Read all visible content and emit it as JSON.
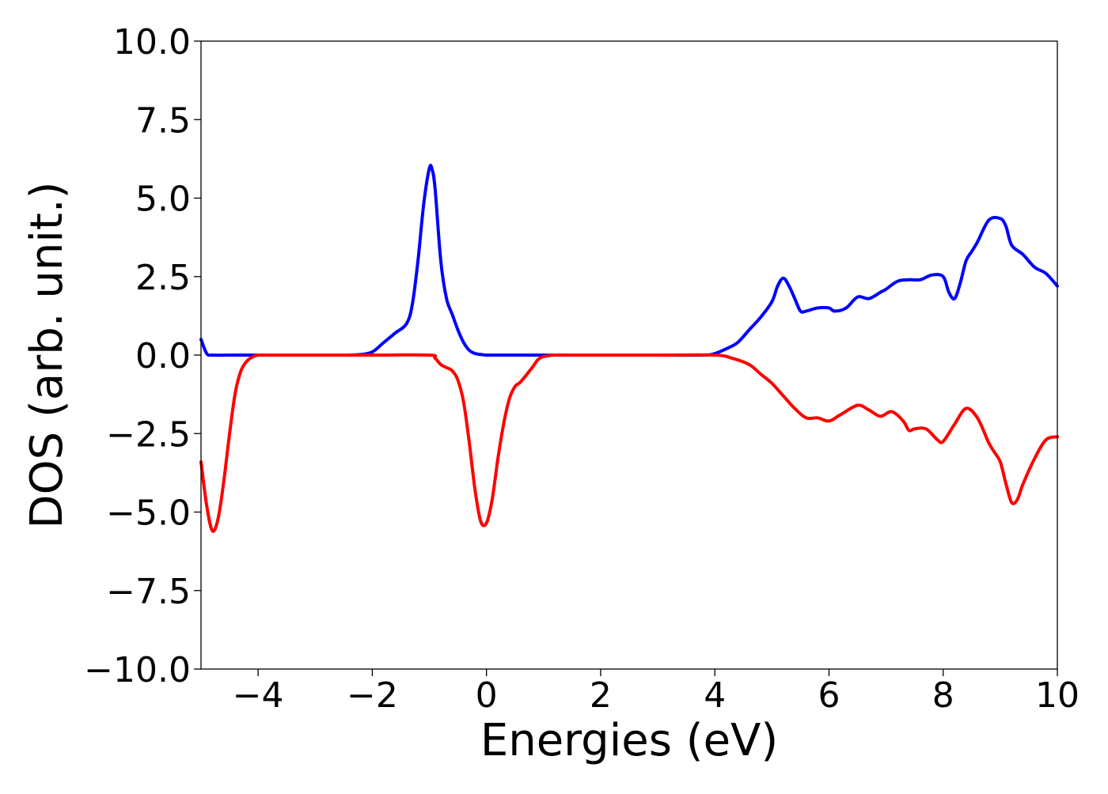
{
  "chart_data": {
    "type": "line",
    "title": "",
    "xlabel": "Energies (eV)",
    "ylabel": "DOS (arb. unit.)",
    "xlim": [
      -5,
      10
    ],
    "ylim": [
      -10,
      10
    ],
    "x_ticks": [
      -4,
      -2,
      0,
      2,
      4,
      6,
      8,
      10
    ],
    "x_tick_labels": [
      "−4",
      "−2",
      "0",
      "2",
      "4",
      "6",
      "8",
      "10"
    ],
    "y_ticks": [
      10,
      7.5,
      5,
      2.5,
      0,
      -2.5,
      -5,
      -7.5,
      -10
    ],
    "y_tick_labels": [
      "10.0",
      "7.5",
      "5.0",
      "2.5",
      "0.0",
      "−2.5",
      "−5.0",
      "−7.5",
      "−10.0"
    ],
    "grid": false,
    "legend": "none",
    "series": [
      {
        "color": "#0000ff",
        "x": [
          -5.0,
          -4.9,
          -4.8,
          -4.5,
          -4.0,
          -3.0,
          -2.5,
          -2.2,
          -2.0,
          -1.8,
          -1.6,
          -1.4,
          -1.3,
          -1.2,
          -1.1,
          -1.0,
          -0.95,
          -0.9,
          -0.8,
          -0.7,
          -0.6,
          -0.5,
          -0.4,
          -0.3,
          -0.2,
          -0.1,
          0.0,
          0.2,
          0.5,
          1.0,
          2.0,
          3.0,
          3.8,
          4.0,
          4.2,
          4.4,
          4.6,
          4.8,
          5.0,
          5.1,
          5.2,
          5.3,
          5.4,
          5.5,
          5.6,
          5.8,
          6.0,
          6.1,
          6.3,
          6.5,
          6.7,
          6.9,
          7.0,
          7.2,
          7.4,
          7.6,
          7.8,
          8.0,
          8.1,
          8.2,
          8.3,
          8.4,
          8.5,
          8.6,
          8.8,
          9.0,
          9.1,
          9.2,
          9.4,
          9.6,
          9.8,
          10.0
        ],
        "y": [
          0.5,
          0.05,
          0.0,
          0.0,
          0.0,
          0.0,
          0.0,
          0.02,
          0.1,
          0.4,
          0.7,
          1.0,
          1.6,
          3.0,
          4.8,
          5.95,
          5.9,
          5.3,
          3.0,
          1.8,
          1.3,
          0.8,
          0.4,
          0.15,
          0.05,
          0.02,
          0.0,
          0.0,
          0.0,
          0.0,
          0.0,
          0.0,
          0.0,
          0.05,
          0.2,
          0.4,
          0.8,
          1.2,
          1.7,
          2.2,
          2.45,
          2.2,
          1.8,
          1.4,
          1.4,
          1.5,
          1.5,
          1.4,
          1.5,
          1.85,
          1.8,
          2.0,
          2.1,
          2.35,
          2.4,
          2.4,
          2.55,
          2.5,
          2.0,
          1.8,
          2.3,
          3.0,
          3.3,
          3.6,
          4.3,
          4.35,
          4.1,
          3.5,
          3.2,
          2.8,
          2.6,
          2.2
        ]
      },
      {
        "color": "#ff0000",
        "x": [
          -5.0,
          -4.9,
          -4.8,
          -4.7,
          -4.6,
          -4.5,
          -4.4,
          -4.3,
          -4.2,
          -4.1,
          -4.0,
          -3.8,
          -3.0,
          -2.0,
          -1.0,
          -0.9,
          -0.8,
          -0.7,
          -0.6,
          -0.5,
          -0.4,
          -0.3,
          -0.2,
          -0.1,
          0.0,
          0.1,
          0.2,
          0.3,
          0.4,
          0.5,
          0.6,
          0.8,
          0.9,
          1.0,
          1.2,
          1.5,
          2.0,
          3.0,
          4.0,
          4.3,
          4.6,
          4.8,
          5.0,
          5.2,
          5.4,
          5.6,
          5.8,
          6.0,
          6.2,
          6.5,
          6.7,
          6.9,
          7.1,
          7.3,
          7.4,
          7.5,
          7.7,
          7.9,
          8.0,
          8.2,
          8.4,
          8.6,
          8.8,
          8.9,
          9.0,
          9.1,
          9.2,
          9.3,
          9.4,
          9.6,
          9.8,
          10.0
        ],
        "y": [
          -3.4,
          -4.8,
          -5.6,
          -5.2,
          -4.0,
          -2.5,
          -1.2,
          -0.5,
          -0.2,
          -0.06,
          0.0,
          0.0,
          0.0,
          0.0,
          0.0,
          -0.1,
          -0.3,
          -0.4,
          -0.5,
          -0.8,
          -1.5,
          -2.8,
          -4.3,
          -5.3,
          -5.35,
          -4.6,
          -3.3,
          -2.2,
          -1.4,
          -1.0,
          -0.85,
          -0.4,
          -0.15,
          -0.05,
          0.0,
          0.0,
          0.0,
          0.0,
          0.0,
          -0.1,
          -0.3,
          -0.6,
          -0.9,
          -1.3,
          -1.7,
          -2.0,
          -2.0,
          -2.1,
          -1.9,
          -1.6,
          -1.75,
          -1.95,
          -1.8,
          -2.1,
          -2.4,
          -2.35,
          -2.35,
          -2.7,
          -2.75,
          -2.2,
          -1.7,
          -2.0,
          -2.8,
          -3.1,
          -3.4,
          -4.1,
          -4.7,
          -4.6,
          -4.1,
          -3.3,
          -2.7,
          -2.6
        ]
      }
    ]
  }
}
